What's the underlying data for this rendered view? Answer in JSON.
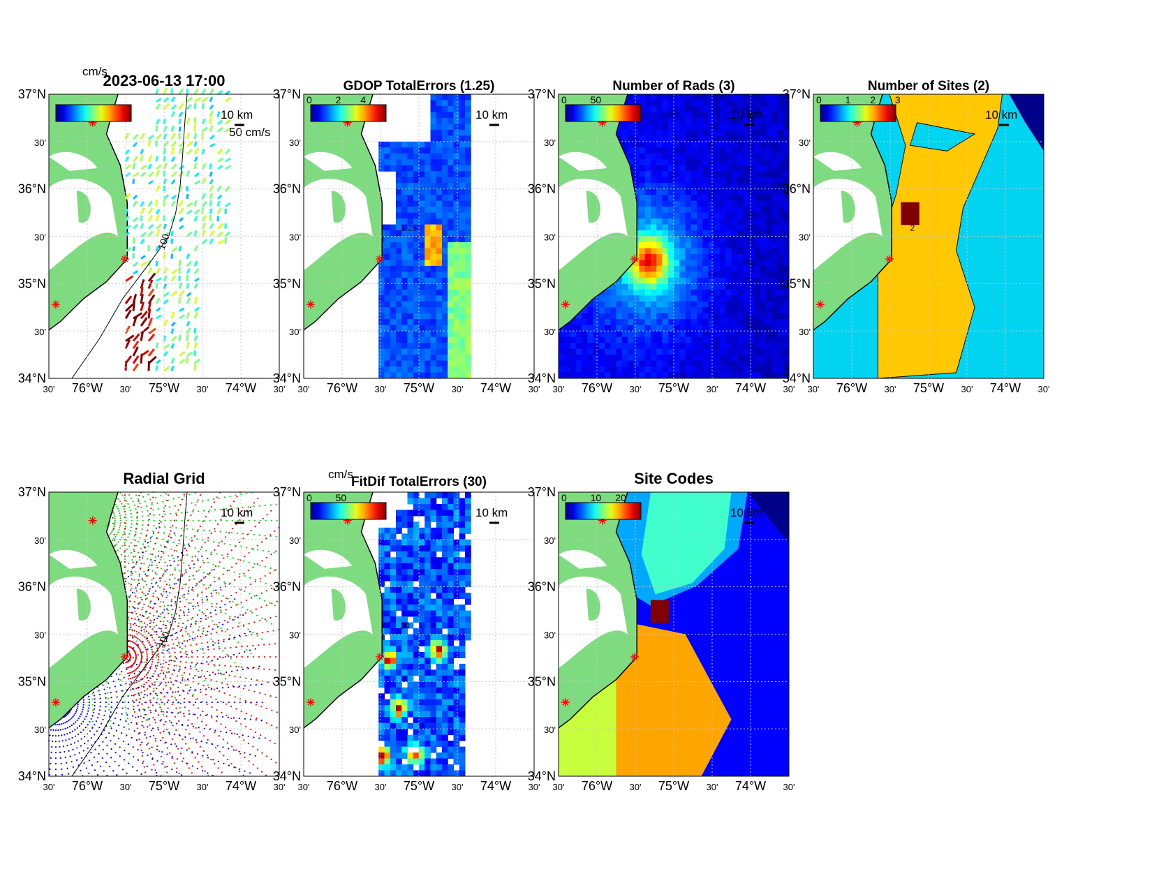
{
  "figure": {
    "timestamp": "2023-06-13 17:00",
    "panels": [
      {
        "id": "currents",
        "title": "2023-06-13 17:00",
        "cb_label": "cm/s",
        "cb_ticks": [],
        "scale_label": "10 km",
        "extra_label": "50 cm/s",
        "contour_label": "100",
        "mode": "vectors"
      },
      {
        "id": "gdop",
        "title": "GDOP TotalErrors (1.25)",
        "cb_label": "",
        "cb_ticks": [
          "0",
          "2",
          "4"
        ],
        "scale_label": "10 km",
        "contour_label": "1.25",
        "mode": "field"
      },
      {
        "id": "nrads",
        "title": "Number of Rads (3)",
        "cb_label": "",
        "cb_ticks": [
          "0",
          "50"
        ],
        "scale_label": "10 km",
        "contour_label": "",
        "mode": "field"
      },
      {
        "id": "nsites",
        "title": "Number of Sites (2)",
        "cb_label": "",
        "cb_ticks": [
          "0",
          "1",
          "2",
          "3"
        ],
        "scale_label": "10 km",
        "contour_label": "2",
        "mode": "sites"
      },
      {
        "id": "radgrid",
        "title": "Radial Grid",
        "cb_label": "",
        "cb_ticks": [],
        "scale_label": "10 km",
        "contour_label": "100",
        "mode": "radial"
      },
      {
        "id": "fitdif",
        "title": "FitDif TotalErrors (30)",
        "cb_label": "cm/s",
        "cb_ticks": [
          "0",
          "50"
        ],
        "scale_label": "10 km",
        "contour_label": "30",
        "mode": "field"
      },
      {
        "id": "sitecodes",
        "title": "Site Codes",
        "cb_label": "",
        "cb_ticks": [
          "0",
          "10",
          "20"
        ],
        "scale_label": "10 km",
        "contour_label": "",
        "mode": "codes"
      }
    ],
    "axes": {
      "lat_labels": [
        "37°N",
        "30'",
        "36°N",
        "30'",
        "35°N",
        "30'",
        "34°N"
      ],
      "lon_labels": [
        "30'",
        "76°W",
        "30'",
        "75°W",
        "30'",
        "74°W",
        "30'"
      ]
    },
    "colors": {
      "land": "#7fdb7f",
      "site_marker": "#ff0000",
      "grid_green": "#00dd00",
      "grid_red": "#ff0000",
      "grid_blue": "#0000ff",
      "cyan": "#00d4f0",
      "gold": "#ffc800",
      "darkred": "#800000"
    }
  }
}
